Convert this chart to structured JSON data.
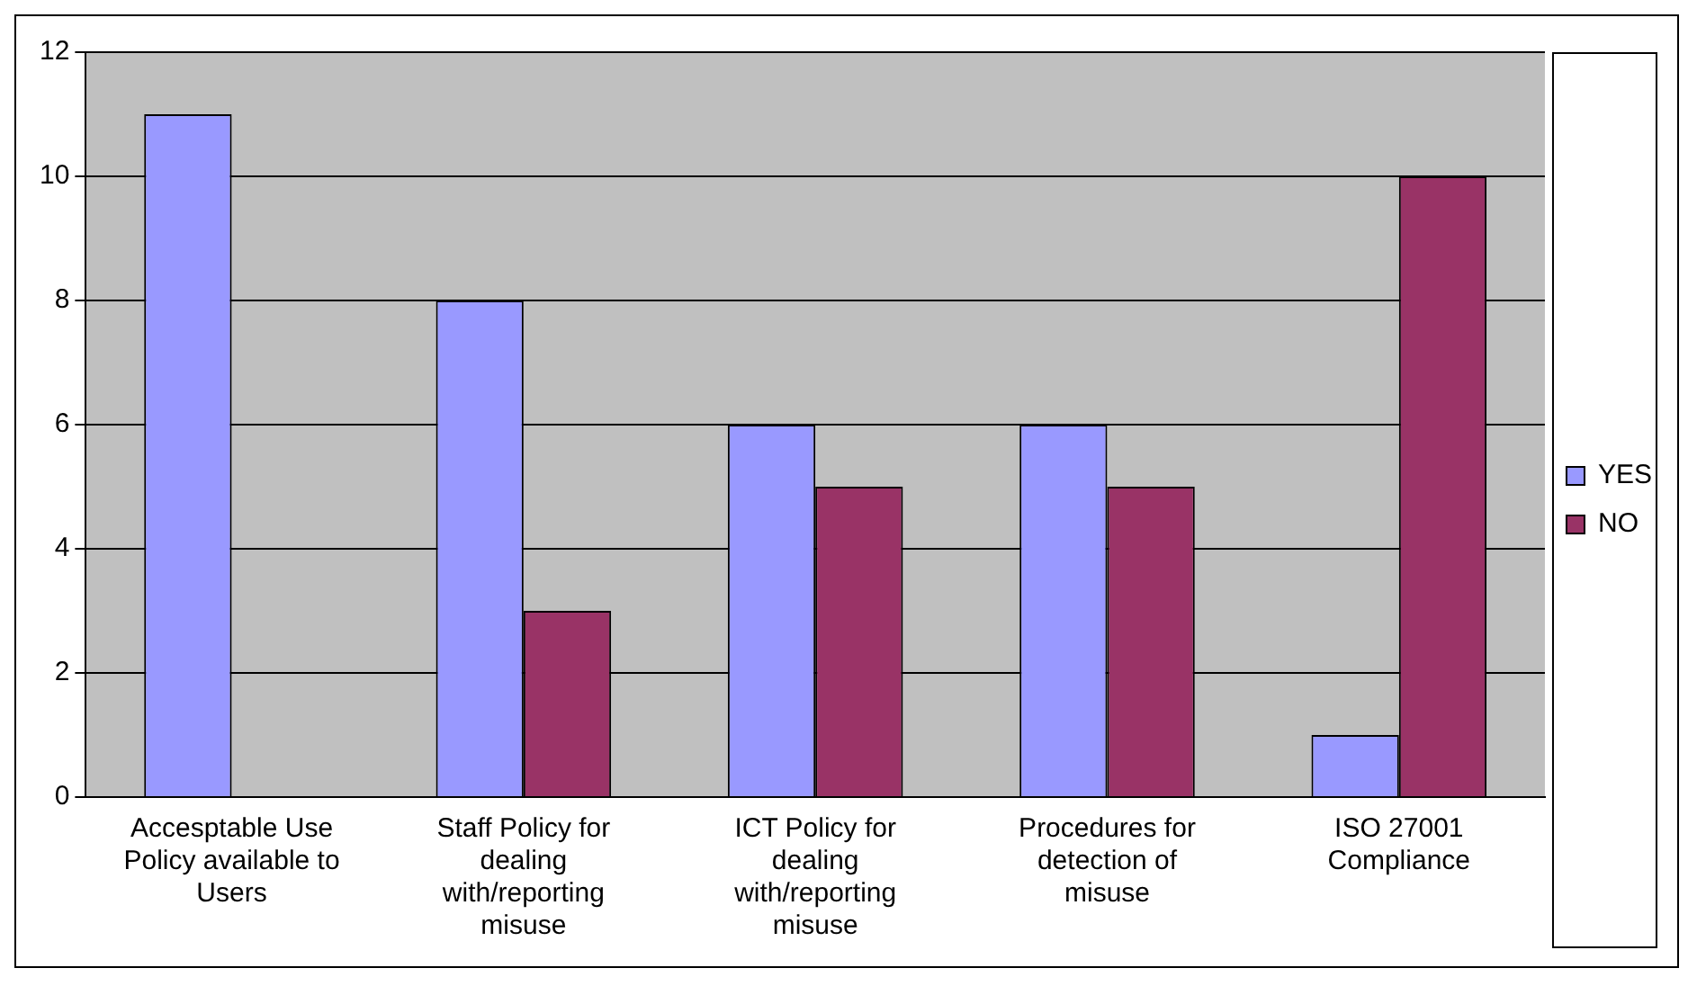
{
  "chart_data": {
    "type": "bar",
    "categories": [
      "Accesptable Use Policy available to Users",
      "Staff Policy for dealing with/reporting misuse",
      "ICT Policy for dealing with/reporting misuse",
      "Procedures for detection of misuse",
      "ISO 27001 Compliance"
    ],
    "series": [
      {
        "name": "YES",
        "color": "#9999ff",
        "values": [
          11,
          8,
          6,
          6,
          1
        ]
      },
      {
        "name": "NO",
        "color": "#993366",
        "values": [
          0,
          3,
          5,
          5,
          10
        ]
      }
    ],
    "ylim": [
      0,
      12
    ],
    "yticks": [
      0,
      2,
      4,
      6,
      8,
      10,
      12
    ],
    "grid": "y",
    "legend": "right"
  }
}
